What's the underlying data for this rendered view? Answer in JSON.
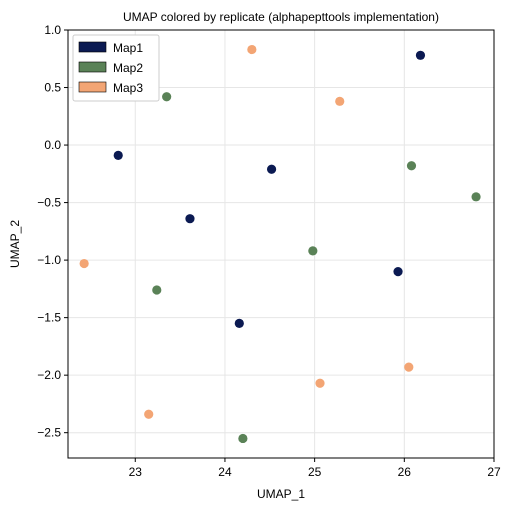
{
  "chart_data": {
    "type": "scatter",
    "title": "UMAP colored by replicate (alphapepttools implementation)",
    "xlabel": "UMAP_1",
    "ylabel": "UMAP_2",
    "xlim": [
      22.25,
      27.0
    ],
    "ylim": [
      -2.72,
      1.0
    ],
    "xticks": [
      23,
      24,
      25,
      26,
      27
    ],
    "yticks": [
      1.0,
      0.5,
      0.0,
      -0.5,
      -1.0,
      -1.5,
      -2.0,
      -2.5
    ],
    "xtick_labels": [
      "23",
      "24",
      "25",
      "26",
      "27"
    ],
    "ytick_labels": [
      "1.0",
      "0.5",
      "0.0",
      "−0.5",
      "−1.0",
      "−1.5",
      "−2.0",
      "−2.5"
    ],
    "grid": true,
    "legend_position": "top-left",
    "series": [
      {
        "name": "Map1",
        "color": "#0b1a52",
        "x": [
          22.81,
          23.61,
          24.52,
          24.16,
          25.93,
          26.18
        ],
        "y": [
          -0.09,
          -0.64,
          -0.21,
          -1.55,
          -1.1,
          0.78
        ]
      },
      {
        "name": "Map2",
        "color": "#5a8257",
        "x": [
          23.35,
          23.24,
          24.2,
          24.98,
          26.08,
          26.8
        ],
        "y": [
          0.42,
          -1.26,
          -2.55,
          -0.92,
          -0.18,
          -0.45
        ]
      },
      {
        "name": "Map3",
        "color": "#f3a574",
        "x": [
          22.43,
          23.15,
          24.3,
          25.28,
          25.06,
          26.05
        ],
        "y": [
          -1.03,
          -2.34,
          0.83,
          0.38,
          -2.07,
          -1.93
        ]
      }
    ]
  }
}
